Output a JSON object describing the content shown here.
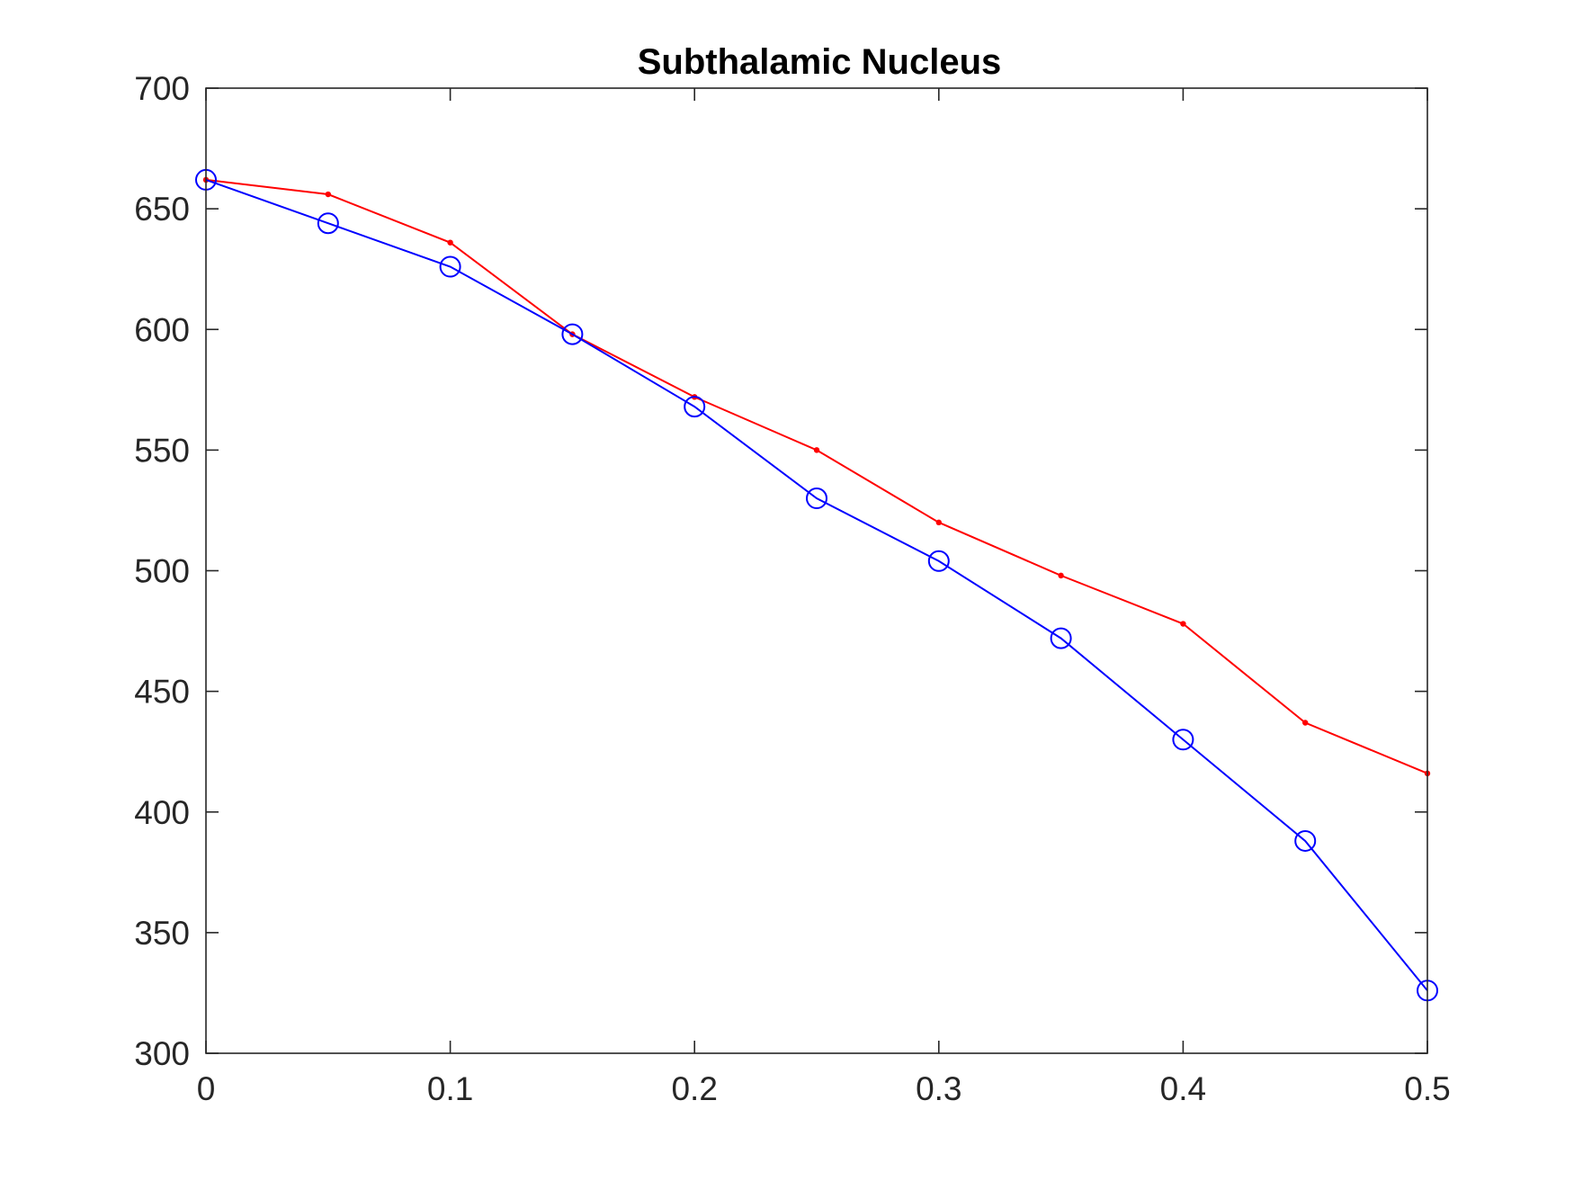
{
  "chart_data": {
    "type": "line",
    "title": "Subthalamic Nucleus",
    "xlabel": "",
    "ylabel": "",
    "xlim": [
      0,
      0.5
    ],
    "ylim": [
      300,
      700
    ],
    "grid": false,
    "x_ticks": [
      0,
      0.1,
      0.2,
      0.3,
      0.4,
      0.5
    ],
    "x_tick_labels": [
      "0",
      "0.1",
      "0.2",
      "0.3",
      "0.4",
      "0.5"
    ],
    "y_ticks": [
      300,
      350,
      400,
      450,
      500,
      550,
      600,
      650,
      700
    ],
    "y_tick_labels": [
      "300",
      "350",
      "400",
      "450",
      "500",
      "550",
      "600",
      "650",
      "700"
    ],
    "x": [
      0,
      0.05,
      0.1,
      0.15,
      0.2,
      0.25,
      0.3,
      0.35,
      0.4,
      0.45,
      0.5
    ],
    "series": [
      {
        "color": "#ff0000",
        "marker": "dot",
        "values": [
          662,
          656,
          636,
          598,
          572,
          550,
          520,
          498,
          478,
          437,
          416
        ]
      },
      {
        "color": "#0000ff",
        "marker": "circle",
        "values": [
          662,
          644,
          626,
          598,
          568,
          530,
          504,
          472,
          430,
          388,
          326
        ]
      }
    ]
  }
}
